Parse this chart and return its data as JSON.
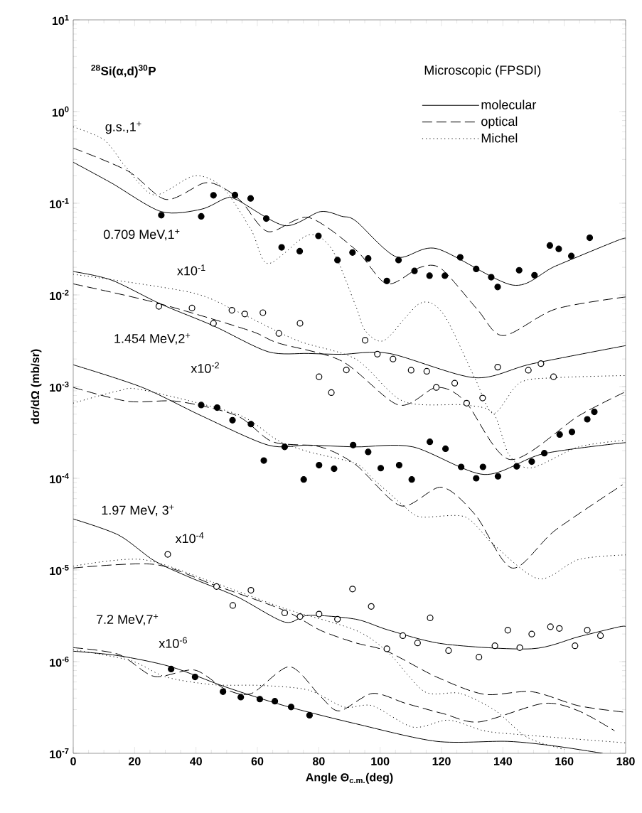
{
  "chart_data": {
    "type": "line",
    "title": "$^{28}$Si(α,d)$^{30}$P",
    "subtitle": "Microscopic (FPSDI)",
    "xlabel": "Angle Θ$_{c.m.}$(deg)",
    "ylabel": "dσ/dΩ (mb/sr)",
    "xlim": [
      0,
      180
    ],
    "xticks": [
      0,
      20,
      40,
      60,
      80,
      100,
      120,
      140,
      160,
      180
    ],
    "ylim": [
      1e-07,
      10
    ],
    "log": "y",
    "yticks": [
      {
        "value": 1e-07,
        "label": "10$^{-7}$"
      },
      {
        "value": 1e-06,
        "label": "10$^{-6}$"
      },
      {
        "value": 1e-05,
        "label": "10$^{-5}$"
      },
      {
        "value": 0.0001,
        "label": "10$^{-4}$"
      },
      {
        "value": 0.001,
        "label": "10$^{-3}$"
      },
      {
        "value": 0.01,
        "label": "10$^{-2}$"
      },
      {
        "value": 0.1,
        "label": "10$^{-1}$"
      },
      {
        "value": 1,
        "label": "10$^{0}$"
      },
      {
        "value": 10,
        "label": "10$^{1}$"
      }
    ],
    "legend": "top right",
    "annotations": [
      "g.s.,1$^{+}$",
      "0.709 MeV,1$^{+}$",
      "x10$^{-1}$",
      "1.454 MeV,2$^{+}$",
      "x10$^{-2}$",
      "1.97 MeV, 3$^{+}$",
      "x10$^{-4}$",
      "7.2 MeV,7$^{+}$",
      "x10$^{-6}$"
    ],
    "series": [
      {
        "name": "molecular",
        "type": "line",
        "line_style": "solid",
        "color": "#000000",
        "x": [
          0,
          12.5,
          28.7,
          41.7,
          49.6,
          53.4,
          68.9,
          80.5,
          87.5,
          92.1,
          105.3,
          118.4,
          143.2,
          157.1,
          178,
          180
        ],
        "values": [
          0.28,
          0.166,
          0.081,
          0.086,
          0.113,
          0.109,
          0.057,
          0.081,
          0.072,
          0.064,
          0.026,
          0.032,
          0.0128,
          0.0206,
          0.04,
          0.04
        ]
      },
      {
        "name": "optical",
        "type": "line",
        "line_style": "dashed",
        "color": "#000000",
        "x": [
          0,
          17.9,
          30.2,
          42.6,
          48.7,
          55,
          63.5,
          76.6,
          92.1,
          102.2,
          113.1,
          120,
          131.6,
          140.1,
          157.1,
          180
        ],
        "values": [
          0.4,
          0.224,
          0.11,
          0.166,
          0.148,
          0.103,
          0.049,
          0.07,
          0.031,
          0.0132,
          0.02,
          0.0192,
          0.007,
          0.0036,
          0.007,
          0.0095
        ]
      },
      {
        "name": "Michel",
        "type": "line",
        "line_style": "dotted",
        "color": "#000000",
        "x": [
          0,
          10.1,
          17.1,
          26.4,
          39.5,
          48.7,
          58,
          63.5,
          76.6,
          84.4,
          92.1,
          95.1,
          101.4,
          113,
          120.6,
          130.8,
          136.9,
          145.5,
          157,
          180
        ],
        "values": [
          0.68,
          0.49,
          0.25,
          0.123,
          0.199,
          0.148,
          0.051,
          0.022,
          0.045,
          0.031,
          0.0075,
          0.0041,
          0.0032,
          0.0081,
          0.0062,
          0.00125,
          0.00051,
          0.0011,
          0.00125,
          0.00132
        ]
      },
      {
        "type": "scatter",
        "marker": "circle",
        "color": "#000000",
        "x": [
          28.7,
          41.7,
          45.7,
          52.7,
          57.8,
          62.9,
          67.9,
          73.8,
          79.9,
          86.1,
          91,
          96.1,
          102.2,
          106,
          111.2,
          116.1,
          121.1,
          126.1,
          131.3,
          136.2,
          138.3,
          145.3,
          150.3,
          155.3,
          158.2,
          162.3,
          168.3
        ],
        "values": [
          0.074,
          0.072,
          0.122,
          0.123,
          0.113,
          0.068,
          0.033,
          0.03,
          0.044,
          0.024,
          0.029,
          0.025,
          0.0142,
          0.024,
          0.0183,
          0.0162,
          0.0162,
          0.0257,
          0.0192,
          0.0156,
          0.0122,
          0.0186,
          0.0164,
          0.0346,
          0.0318,
          0.0266,
          0.042
        ]
      },
      {
        "type": "line",
        "line_style": "solid",
        "color": "#000000",
        "x": [
          0,
          12.5,
          28.7,
          45.7,
          63.5,
          76.6,
          87.5,
          103,
          130.8,
          149.4,
          180
        ],
        "values": [
          0.018,
          0.0145,
          0.0079,
          0.0046,
          0.0024,
          0.0023,
          0.00225,
          0.0023,
          0.00125,
          0.00177,
          0.0028
        ]
      },
      {
        "type": "line",
        "line_style": "dashed",
        "color": "#000000",
        "x": [
          0,
          27.1,
          57.3,
          66.6,
          87.5,
          106,
          118.4,
          127.7,
          142.4,
          164.7,
          180
        ],
        "values": [
          0.0132,
          0.0082,
          0.0041,
          0.003,
          0.0019,
          0.00063,
          0.00098,
          0.00069,
          0.00016,
          0.00048,
          0.00088
        ]
      },
      {
        "type": "line",
        "line_style": "dotted",
        "color": "#000000",
        "x": [
          0,
          38,
          53.4,
          72.8,
          92,
          107.6,
          127.7,
          136.9,
          142,
          149.3,
          164.7,
          180
        ],
        "values": [
          0.0168,
          0.0107,
          0.0066,
          0.0032,
          0.002,
          0.00069,
          0.00063,
          0.00051,
          0.00018,
          0.00013,
          0.00022,
          0.00026
        ]
      },
      {
        "type": "scatter",
        "marker": "circle",
        "color": "#ffffff",
        "x": [
          27.9,
          38.7,
          45.7,
          51.7,
          55.9,
          61.8,
          67,
          73.9,
          80.1,
          84.1,
          89,
          95.1,
          99.1,
          104.2,
          110.1,
          115.2,
          118.3,
          124.3,
          128.2,
          133.4,
          138.3,
          148.3,
          152.4,
          156.5
        ],
        "values": [
          0.0075,
          0.0072,
          0.0049,
          0.0068,
          0.0062,
          0.0064,
          0.0038,
          0.0049,
          0.00128,
          0.00086,
          0.00152,
          0.0032,
          0.00226,
          0.002,
          0.00151,
          0.00147,
          0.00098,
          0.00109,
          0.00066,
          0.00075,
          0.00163,
          0.00151,
          0.00178,
          0.00128
        ]
      },
      {
        "type": "line",
        "line_style": "solid",
        "color": "#000000",
        "x": [
          0,
          22.5,
          41.8,
          63.5,
          76.6,
          92.1,
          110.7,
          133.9,
          153.1,
          180
        ],
        "values": [
          0.00173,
          0.00098,
          0.00048,
          0.00023,
          0.00023,
          0.00022,
          0.00022,
          0.00011,
          0.000185,
          0.000245
        ]
      },
      {
        "type": "line",
        "line_style": "dashed",
        "color": "#000000",
        "x": [
          0,
          17.9,
          34.1,
          53.4,
          65,
          80.5,
          92.1,
          106.8,
          120,
          131,
          143,
          157,
          179
        ],
        "values": [
          0.00098,
          0.00069,
          0.00069,
          0.00048,
          0.00025,
          0.00022,
          0.00014,
          5e-05,
          8e-05,
          4e-05,
          1.05e-05,
          2.7e-05,
          8.5e-05
        ]
      },
      {
        "type": "line",
        "line_style": "dotted",
        "color": "#000000",
        "x": [
          0,
          14.8,
          22.5,
          53.4,
          66.6,
          76.6,
          92,
          97.5,
          106.8,
          113,
          127.6,
          136.9,
          151.7,
          164.7,
          180
        ],
        "values": [
          0.00066,
          0.0009,
          0.00092,
          0.0005,
          0.00026,
          0.000195,
          0.000145,
          0.0001,
          5.3e-05,
          3.8e-05,
          3.8e-05,
          1.9e-05,
          8e-06,
          1.3e-05,
          1.46e-05
        ]
      },
      {
        "type": "scatter",
        "marker": "circle",
        "color": "#000000",
        "x": [
          41.7,
          46.9,
          51.9,
          57.9,
          62.1,
          68.9,
          75.1,
          80.1,
          85,
          91.2,
          96.1,
          100.2,
          106.2,
          110.3,
          116.2,
          121.3,
          126.4,
          131.3,
          133.5,
          138.4,
          144.5,
          149.4,
          153.5,
          158.5,
          162.5,
          167.5,
          169.8
        ],
        "values": [
          0.00063,
          0.00059,
          0.00043,
          0.00039,
          0.000156,
          0.00022,
          9.7e-05,
          0.000139,
          0.000127,
          0.00023,
          0.000194,
          0.000129,
          0.000139,
          9.7e-05,
          0.00025,
          0.00021,
          0.000133,
          0.0001,
          0.000133,
          0.000105,
          0.000135,
          0.000152,
          0.000188,
          0.0003,
          0.00032,
          0.00044,
          0.00053
        ]
      },
      {
        "type": "line",
        "line_style": "solid",
        "color": "#000000",
        "x": [
          0,
          14.8,
          26.4,
          38,
          53.4,
          68.9,
          76.6,
          92.1,
          102.9,
          120.7,
          149.3,
          164.7,
          178,
          180
        ],
        "values": [
          3.6e-05,
          2.4e-05,
          1.26e-05,
          8.3e-06,
          5.1e-06,
          2.7e-06,
          3.2e-06,
          2.9e-06,
          2.2e-06,
          1.56e-06,
          1.38e-06,
          1.87e-06,
          2.4e-06,
          2.4e-06
        ]
      },
      {
        "type": "line",
        "line_style": "dashed",
        "color": "#000000",
        "x": [
          0,
          26.4,
          45.7,
          68.9,
          80.5,
          92.1,
          102.2,
          118.4,
          133.9,
          149.4,
          164.7,
          180
        ],
        "values": [
          1.05e-05,
          1.15e-05,
          6.9e-06,
          3.6e-06,
          2.2e-06,
          1.6e-06,
          1.3e-06,
          6.8e-07,
          4.4e-07,
          4.7e-07,
          3.3e-07,
          2.8e-07
        ]
      },
      {
        "type": "line",
        "line_style": "dotted",
        "color": "#000000",
        "x": [
          0,
          22.5,
          45.7,
          68.9,
          92,
          102.9,
          114.5,
          126.1,
          137.7,
          147.8,
          160
        ],
        "values": [
          1.1e-05,
          1.3e-05,
          7.3e-06,
          3.8e-06,
          2.2e-06,
          1.23e-06,
          4.7e-07,
          4.5e-07,
          2.9e-07,
          1.5e-07,
          1.1e-07
        ]
      },
      {
        "type": "scatter",
        "marker": "circle",
        "color": "#ffffff",
        "x": [
          30.8,
          46.7,
          52,
          57.9,
          68.9,
          73.9,
          80.1,
          86.1,
          91,
          97.1,
          102.2,
          107.4,
          112.2,
          116.3,
          122.3,
          132.2,
          137.4,
          141.6,
          145.5,
          149.4,
          155.5,
          158.4,
          163.5,
          167.5,
          171.8
        ],
        "values": [
          1.48e-05,
          6.6e-06,
          4.1e-06,
          6e-06,
          3.4e-06,
          3.1e-06,
          3.3e-06,
          2.9e-06,
          6.2e-06,
          4e-06,
          1.38e-06,
          1.92e-06,
          1.6e-06,
          3e-06,
          1.32e-06,
          1.12e-06,
          1.49e-06,
          2.2e-06,
          1.42e-06,
          2e-06,
          2.4e-06,
          2.3e-06,
          1.49e-06,
          2.2e-06,
          1.92e-06
        ]
      },
      {
        "type": "line",
        "line_style": "solid",
        "color": "#000000",
        "x": [
          0,
          14.8,
          31.8,
          49.6,
          68.9,
          92.1,
          118.4,
          141.5,
          157,
          172.5
        ],
        "values": [
          1.3e-06,
          1.16e-06,
          8.8e-07,
          5.3e-07,
          3.3e-07,
          2.1e-07,
          1.35e-07,
          1.35e-07,
          1.2e-07,
          1e-07
        ]
      },
      {
        "type": "line",
        "line_style": "dashed",
        "color": "#000000",
        "x": [
          0,
          14.8,
          26.4,
          39.5,
          49.6,
          58.1,
          70.5,
          80.5,
          86.7,
          97.5,
          108.4,
          120.7,
          132.3,
          153.2,
          164.7,
          176.4
        ],
        "values": [
          1.42e-06,
          1.2e-06,
          6.9e-07,
          8.1e-07,
          5e-07,
          4.5e-07,
          8.8e-07,
          4.2e-07,
          2.9e-07,
          4.5e-07,
          3.5e-07,
          2.7e-07,
          2.2e-07,
          3.5e-07,
          2.9e-07,
          1.76e-07
        ]
      },
      {
        "type": "line",
        "line_style": "dotted",
        "color": "#000000",
        "x": [
          0,
          18.6,
          30.2,
          45.7,
          61.2,
          76.6,
          88.2,
          97.5,
          110.7,
          122.3,
          133.9,
          145.5,
          180
        ],
        "values": [
          1.35e-06,
          1.03e-06,
          6.8e-07,
          5.6e-07,
          5.5e-07,
          4.9e-07,
          3.2e-07,
          3.3e-07,
          1.93e-07,
          2.3e-07,
          1.76e-07,
          1.6e-07,
          1.3e-07
        ]
      },
      {
        "type": "scatter",
        "marker": "circle",
        "color": "#000000",
        "x": [
          31.9,
          39.7,
          48.8,
          54.6,
          60.8,
          65.7,
          71,
          77
        ],
        "values": [
          8.3e-07,
          6.8e-07,
          4.7e-07,
          4.1e-07,
          3.9e-07,
          3.7e-07,
          3.2e-07,
          2.6e-07
        ]
      }
    ]
  }
}
